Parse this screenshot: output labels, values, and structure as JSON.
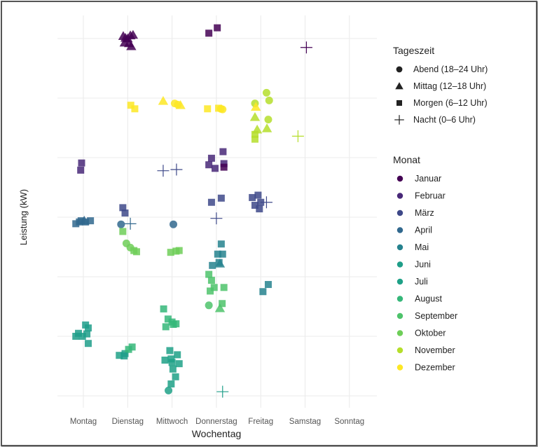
{
  "chart_data": {
    "type": "scatter",
    "title": "",
    "xlabel": "Wochentag",
    "ylabel": "Leistung (kW)",
    "categories": [
      "Montag",
      "Dienstag",
      "Mittwoch",
      "Donnerstag",
      "Freitag",
      "Samstag",
      "Sonntag"
    ],
    "ylim": [
      0,
      6
    ],
    "y_unit_note": "no y tick labels shown; values in gridline units (0 = lowest gridline, 6 = highest)",
    "grid": true,
    "legend": {
      "position": "right",
      "shape_title": "Tageszeit",
      "shapes": [
        {
          "label": "Abend (18–24 Uhr)",
          "shape": "circle"
        },
        {
          "label": "Mittag (12–18 Uhr)",
          "shape": "triangle"
        },
        {
          "label": "Morgen (6–12 Uhr)",
          "shape": "square"
        },
        {
          "label": "Nacht (0–6 Uhr)",
          "shape": "cross"
        }
      ],
      "color_title": "Monat",
      "colors": [
        {
          "label": "Januar",
          "color": "#440154"
        },
        {
          "label": "Februar",
          "color": "#482878"
        },
        {
          "label": "März",
          "color": "#3e4989"
        },
        {
          "label": "April",
          "color": "#31688e"
        },
        {
          "label": "Mai",
          "color": "#26828e"
        },
        {
          "label": "Juni",
          "color": "#1f9e89"
        },
        {
          "label": "Juli",
          "color": "#1fa187"
        },
        {
          "label": "August",
          "color": "#35b779"
        },
        {
          "label": "September",
          "color": "#4ec36b"
        },
        {
          "label": "Oktober",
          "color": "#6ece58"
        },
        {
          "label": "November",
          "color": "#b5de2b"
        },
        {
          "label": "Dezember",
          "color": "#fde725"
        }
      ]
    },
    "points": [
      {
        "x": 0,
        "dx": -0.04,
        "y": 3.91,
        "m": 1,
        "s": "square"
      },
      {
        "x": 0,
        "dx": -0.06,
        "y": 3.79,
        "m": 1,
        "s": "square"
      },
      {
        "x": 0,
        "dx": -0.09,
        "y": 2.92,
        "m": 3,
        "s": "square"
      },
      {
        "x": 0,
        "dx": -0.17,
        "y": 2.89,
        "m": 3,
        "s": "square"
      },
      {
        "x": 0,
        "dx": -0.05,
        "y": 2.94,
        "m": 3,
        "s": "square"
      },
      {
        "x": 0,
        "dx": 0.02,
        "y": 2.94,
        "m": 3,
        "s": "triangle"
      },
      {
        "x": 0,
        "dx": 0.05,
        "y": 2.92,
        "m": 3,
        "s": "square"
      },
      {
        "x": 0,
        "dx": 0.16,
        "y": 2.94,
        "m": 3,
        "s": "square"
      },
      {
        "x": 0,
        "dx": 0.05,
        "y": 1.19,
        "m": 5,
        "s": "square"
      },
      {
        "x": 0,
        "dx": 0.11,
        "y": 1.14,
        "m": 5,
        "s": "square"
      },
      {
        "x": 0,
        "dx": -0.11,
        "y": 1.05,
        "m": 5,
        "s": "square"
      },
      {
        "x": 0,
        "dx": -0.02,
        "y": 1.0,
        "m": 5,
        "s": "square"
      },
      {
        "x": 0,
        "dx": -0.17,
        "y": 1.0,
        "m": 5,
        "s": "square"
      },
      {
        "x": 0,
        "dx": 0.08,
        "y": 1.04,
        "m": 5,
        "s": "square"
      },
      {
        "x": 0,
        "dx": 0.11,
        "y": 0.88,
        "m": 5,
        "s": "square"
      },
      {
        "x": 1,
        "dx": -0.1,
        "y": 6.04,
        "m": 0,
        "s": "triangle"
      },
      {
        "x": 1,
        "dx": -0.05,
        "y": 6.01,
        "m": 0,
        "s": "triangle"
      },
      {
        "x": 1,
        "dx": 0.0,
        "y": 6.0,
        "m": 0,
        "s": "triangle"
      },
      {
        "x": 1,
        "dx": 0.06,
        "y": 6.05,
        "m": 0,
        "s": "triangle"
      },
      {
        "x": 1,
        "dx": 0.12,
        "y": 6.06,
        "m": 0,
        "s": "triangle"
      },
      {
        "x": 1,
        "dx": -0.07,
        "y": 5.93,
        "m": 0,
        "s": "triangle"
      },
      {
        "x": 1,
        "dx": 0.03,
        "y": 5.92,
        "m": 0,
        "s": "triangle"
      },
      {
        "x": 1,
        "dx": 0.08,
        "y": 5.87,
        "m": 0,
        "s": "triangle"
      },
      {
        "x": 1,
        "dx": 0.07,
        "y": 4.88,
        "m": 11,
        "s": "square"
      },
      {
        "x": 1,
        "dx": 0.16,
        "y": 4.82,
        "m": 11,
        "s": "square"
      },
      {
        "x": 1,
        "dx": -0.11,
        "y": 3.16,
        "m": 2,
        "s": "square"
      },
      {
        "x": 1,
        "dx": -0.06,
        "y": 3.07,
        "m": 2,
        "s": "square"
      },
      {
        "x": 1,
        "dx": -0.15,
        "y": 2.88,
        "m": 3,
        "s": "circle"
      },
      {
        "x": 1,
        "dx": 0.06,
        "y": 2.89,
        "m": 3,
        "s": "cross"
      },
      {
        "x": 1,
        "dx": -0.11,
        "y": 2.76,
        "m": 9,
        "s": "square"
      },
      {
        "x": 1,
        "dx": -0.03,
        "y": 2.56,
        "m": 9,
        "s": "circle"
      },
      {
        "x": 1,
        "dx": 0.06,
        "y": 2.49,
        "m": 9,
        "s": "circle"
      },
      {
        "x": 1,
        "dx": 0.14,
        "y": 2.44,
        "m": 9,
        "s": "square"
      },
      {
        "x": 1,
        "dx": 0.2,
        "y": 2.42,
        "m": 9,
        "s": "square"
      },
      {
        "x": 1,
        "dx": -0.19,
        "y": 0.68,
        "m": 6,
        "s": "square"
      },
      {
        "x": 1,
        "dx": -0.06,
        "y": 0.71,
        "m": 6,
        "s": "square"
      },
      {
        "x": 1,
        "dx": 0.02,
        "y": 0.78,
        "m": 7,
        "s": "square"
      },
      {
        "x": 1,
        "dx": 0.1,
        "y": 0.82,
        "m": 7,
        "s": "square"
      },
      {
        "x": 1,
        "dx": -0.08,
        "y": 0.67,
        "m": 5,
        "s": "square"
      },
      {
        "x": 2,
        "dx": -0.2,
        "y": 4.95,
        "m": 11,
        "s": "triangle"
      },
      {
        "x": 2,
        "dx": 0.06,
        "y": 4.91,
        "m": 11,
        "s": "circle"
      },
      {
        "x": 2,
        "dx": 0.19,
        "y": 4.88,
        "m": 11,
        "s": "triangle"
      },
      {
        "x": 2,
        "dx": 0.13,
        "y": 4.89,
        "m": 11,
        "s": "circle"
      },
      {
        "x": 2,
        "dx": -0.2,
        "y": 3.78,
        "m": 2,
        "s": "cross"
      },
      {
        "x": 2,
        "dx": 0.1,
        "y": 3.8,
        "m": 2,
        "s": "cross"
      },
      {
        "x": 2,
        "dx": 0.03,
        "y": 2.88,
        "m": 3,
        "s": "circle"
      },
      {
        "x": 2,
        "dx": -0.03,
        "y": 2.41,
        "m": 9,
        "s": "square"
      },
      {
        "x": 2,
        "dx": 0.16,
        "y": 2.44,
        "m": 9,
        "s": "square"
      },
      {
        "x": 2,
        "dx": 0.09,
        "y": 2.43,
        "m": 9,
        "s": "square"
      },
      {
        "x": 2,
        "dx": -0.19,
        "y": 1.46,
        "m": 7,
        "s": "square"
      },
      {
        "x": 2,
        "dx": -0.09,
        "y": 1.29,
        "m": 7,
        "s": "square"
      },
      {
        "x": 2,
        "dx": 0.0,
        "y": 1.24,
        "m": 7,
        "s": "square"
      },
      {
        "x": 2,
        "dx": -0.14,
        "y": 1.16,
        "m": 7,
        "s": "square"
      },
      {
        "x": 2,
        "dx": 0.03,
        "y": 1.2,
        "m": 7,
        "s": "square"
      },
      {
        "x": 2,
        "dx": 0.09,
        "y": 1.21,
        "m": 7,
        "s": "square"
      },
      {
        "x": 2,
        "dx": -0.05,
        "y": 0.76,
        "m": 6,
        "s": "square"
      },
      {
        "x": 2,
        "dx": 0.12,
        "y": 0.69,
        "m": 6,
        "s": "square"
      },
      {
        "x": 2,
        "dx": -0.16,
        "y": 0.6,
        "m": 6,
        "s": "square"
      },
      {
        "x": 2,
        "dx": 0.0,
        "y": 0.56,
        "m": 6,
        "s": "square"
      },
      {
        "x": 2,
        "dx": 0.16,
        "y": 0.54,
        "m": 6,
        "s": "square"
      },
      {
        "x": 2,
        "dx": -0.02,
        "y": 0.62,
        "m": 6,
        "s": "square"
      },
      {
        "x": 2,
        "dx": 0.02,
        "y": 0.45,
        "m": 6,
        "s": "square"
      },
      {
        "x": 2,
        "dx": 0.08,
        "y": 0.32,
        "m": 6,
        "s": "square"
      },
      {
        "x": 2,
        "dx": -0.02,
        "y": 0.2,
        "m": 6,
        "s": "square"
      },
      {
        "x": 2,
        "dx": -0.08,
        "y": 0.09,
        "m": 6,
        "s": "circle"
      },
      {
        "x": 3,
        "dx": -0.17,
        "y": 6.09,
        "m": 0,
        "s": "square"
      },
      {
        "x": 3,
        "dx": 0.02,
        "y": 6.18,
        "m": 0,
        "s": "square"
      },
      {
        "x": 3,
        "dx": -0.2,
        "y": 4.82,
        "m": 11,
        "s": "square"
      },
      {
        "x": 3,
        "dx": 0.05,
        "y": 4.83,
        "m": 11,
        "s": "square"
      },
      {
        "x": 3,
        "dx": 0.1,
        "y": 4.82,
        "m": 11,
        "s": "circle"
      },
      {
        "x": 3,
        "dx": 0.14,
        "y": 4.81,
        "m": 11,
        "s": "circle"
      },
      {
        "x": 3,
        "dx": 0.15,
        "y": 4.1,
        "m": 1,
        "s": "square"
      },
      {
        "x": 3,
        "dx": -0.11,
        "y": 3.99,
        "m": 1,
        "s": "square"
      },
      {
        "x": 3,
        "dx": -0.17,
        "y": 3.88,
        "m": 1,
        "s": "square"
      },
      {
        "x": 3,
        "dx": -0.03,
        "y": 3.82,
        "m": 1,
        "s": "square"
      },
      {
        "x": 3,
        "dx": 0.17,
        "y": 3.9,
        "m": 1,
        "s": "square"
      },
      {
        "x": 3,
        "dx": 0.17,
        "y": 3.84,
        "m": 0,
        "s": "square"
      },
      {
        "x": 3,
        "dx": -0.11,
        "y": 3.25,
        "m": 2,
        "s": "square"
      },
      {
        "x": 3,
        "dx": 0.11,
        "y": 3.32,
        "m": 2,
        "s": "square"
      },
      {
        "x": 3,
        "dx": 0.0,
        "y": 2.98,
        "m": 2,
        "s": "cross"
      },
      {
        "x": 3,
        "dx": 0.11,
        "y": 2.55,
        "m": 4,
        "s": "square"
      },
      {
        "x": 3,
        "dx": 0.03,
        "y": 2.38,
        "m": 4,
        "s": "square"
      },
      {
        "x": 3,
        "dx": 0.14,
        "y": 2.38,
        "m": 4,
        "s": "square"
      },
      {
        "x": 3,
        "dx": 0.06,
        "y": 2.24,
        "m": 4,
        "s": "square"
      },
      {
        "x": 3,
        "dx": -0.09,
        "y": 2.19,
        "m": 4,
        "s": "square"
      },
      {
        "x": 3,
        "dx": 0.08,
        "y": 2.22,
        "m": 4,
        "s": "triangle"
      },
      {
        "x": 3,
        "dx": -0.17,
        "y": 2.04,
        "m": 8,
        "s": "square"
      },
      {
        "x": 3,
        "dx": -0.11,
        "y": 1.94,
        "m": 8,
        "s": "square"
      },
      {
        "x": 3,
        "dx": -0.05,
        "y": 1.82,
        "m": 8,
        "s": "square"
      },
      {
        "x": 3,
        "dx": -0.14,
        "y": 1.76,
        "m": 8,
        "s": "square"
      },
      {
        "x": 3,
        "dx": 0.17,
        "y": 1.82,
        "m": 8,
        "s": "square"
      },
      {
        "x": 3,
        "dx": -0.17,
        "y": 1.52,
        "m": 8,
        "s": "circle"
      },
      {
        "x": 3,
        "dx": 0.08,
        "y": 1.47,
        "m": 8,
        "s": "triangle"
      },
      {
        "x": 3,
        "dx": 0.13,
        "y": 1.55,
        "m": 8,
        "s": "square"
      },
      {
        "x": 3,
        "dx": 0.14,
        "y": 0.07,
        "m": 5,
        "s": "cross"
      },
      {
        "x": 4,
        "dx": 0.13,
        "y": 5.09,
        "m": 10,
        "s": "circle"
      },
      {
        "x": 4,
        "dx": 0.19,
        "y": 4.96,
        "m": 10,
        "s": "circle"
      },
      {
        "x": 4,
        "dx": -0.13,
        "y": 4.91,
        "m": 10,
        "s": "circle"
      },
      {
        "x": 4,
        "dx": -0.11,
        "y": 4.85,
        "m": 11,
        "s": "triangle"
      },
      {
        "x": 4,
        "dx": 0.17,
        "y": 4.64,
        "m": 10,
        "s": "circle"
      },
      {
        "x": 4,
        "dx": -0.13,
        "y": 4.68,
        "m": 10,
        "s": "triangle"
      },
      {
        "x": 4,
        "dx": -0.08,
        "y": 4.47,
        "m": 10,
        "s": "triangle"
      },
      {
        "x": 4,
        "dx": 0.14,
        "y": 4.49,
        "m": 10,
        "s": "triangle"
      },
      {
        "x": 4,
        "dx": -0.13,
        "y": 4.39,
        "m": 10,
        "s": "square"
      },
      {
        "x": 4,
        "dx": -0.13,
        "y": 4.31,
        "m": 10,
        "s": "square"
      },
      {
        "x": 4,
        "dx": -0.19,
        "y": 3.33,
        "m": 2,
        "s": "square"
      },
      {
        "x": 4,
        "dx": -0.06,
        "y": 3.37,
        "m": 2,
        "s": "square"
      },
      {
        "x": 4,
        "dx": -0.13,
        "y": 3.2,
        "m": 2,
        "s": "square"
      },
      {
        "x": 4,
        "dx": 0.0,
        "y": 3.25,
        "m": 2,
        "s": "square"
      },
      {
        "x": 4,
        "dx": -0.03,
        "y": 3.14,
        "m": 2,
        "s": "square"
      },
      {
        "x": 4,
        "dx": 0.13,
        "y": 3.25,
        "m": 2,
        "s": "cross"
      },
      {
        "x": 4,
        "dx": 0.05,
        "y": 1.75,
        "m": 4,
        "s": "square"
      },
      {
        "x": 4,
        "dx": 0.17,
        "y": 1.87,
        "m": 4,
        "s": "square"
      },
      {
        "x": 5,
        "dx": 0.03,
        "y": 5.85,
        "m": 0,
        "s": "cross"
      },
      {
        "x": 5,
        "dx": -0.16,
        "y": 4.36,
        "m": 10,
        "s": "cross"
      }
    ]
  }
}
